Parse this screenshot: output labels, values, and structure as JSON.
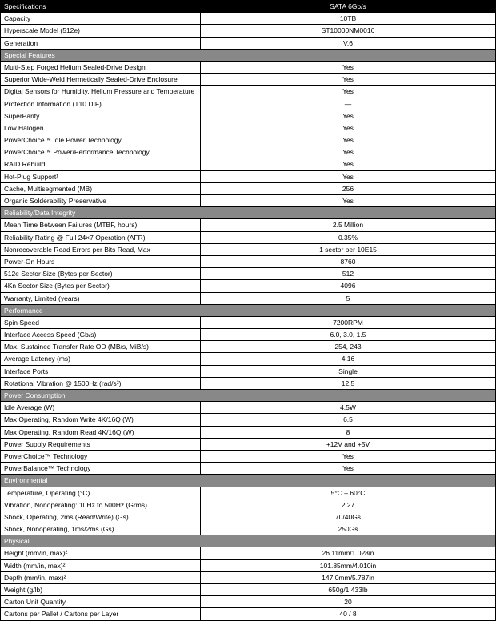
{
  "header": {
    "spec_label": "Specifications",
    "product": "SATA 6Gb/s"
  },
  "top_rows": [
    {
      "label": "Capacity",
      "value": "10TB"
    },
    {
      "label": "Hyperscale Model (512e)",
      "value": "ST10000NM0016"
    },
    {
      "label": "Generation",
      "value": "V.6"
    }
  ],
  "sections": [
    {
      "title": "Special Features",
      "rows": [
        {
          "label": "Multi-Step Forged Helium Sealed-Drive Design",
          "value": "Yes"
        },
        {
          "label": "Superior Wide-Weld Hermetically Sealed-Drive Enclosure",
          "value": "Yes"
        },
        {
          "label": "Digital Sensors for Humidity, Helium Pressure and Temperature",
          "value": "Yes"
        },
        {
          "label": "Protection Information (T10 DIF)",
          "value": "—"
        },
        {
          "label": "SuperParity",
          "value": "Yes"
        },
        {
          "label": "Low Halogen",
          "value": "Yes"
        },
        {
          "label": "PowerChoice™ Idle Power Technology",
          "value": "Yes"
        },
        {
          "label": "PowerChoice™ Power/Performance Technology",
          "value": "Yes"
        },
        {
          "label": "RAID Rebuild",
          "value": "Yes"
        },
        {
          "label": "Hot-Plug Support¹",
          "value": "Yes"
        },
        {
          "label": "Cache, Multisegmented (MB)",
          "value": "256"
        },
        {
          "label": "Organic Solderability Preservative",
          "value": "Yes"
        }
      ]
    },
    {
      "title": "Reliability/Data Integrity",
      "rows": [
        {
          "label": "Mean Time Between Failures (MTBF, hours)",
          "value": "2.5 Million"
        },
        {
          "label": "Reliability Rating @ Full 24×7 Operation (AFR)",
          "value": "0.35%"
        },
        {
          "label": "Nonrecoverable Read Errors per Bits Read, Max",
          "value": "1 sector per 10E15"
        },
        {
          "label": "Power-On Hours",
          "value": "8760"
        },
        {
          "label": "512e Sector Size (Bytes per Sector)",
          "value": "512"
        },
        {
          "label": "4Kn Sector Size (Bytes per Sector)",
          "value": "4096"
        },
        {
          "label": "Warranty, Limited (years)",
          "value": "5"
        }
      ]
    },
    {
      "title": "Performance",
      "rows": [
        {
          "label": "Spin Speed",
          "value": "7200RPM"
        },
        {
          "label": "Interface Access Speed (Gb/s)",
          "value": "6.0, 3.0, 1.5"
        },
        {
          "label": "Max. Sustained Transfer Rate OD (MB/s, MiB/s)",
          "value": "254, 243"
        },
        {
          "label": "Average Latency (ms)",
          "value": "4.16"
        },
        {
          "label": "Interface Ports",
          "value": "Single"
        },
        {
          "label": "Rotational Vibration @ 1500Hz (rad/s²)",
          "value": "12.5"
        }
      ]
    },
    {
      "title": "Power Consumption",
      "rows": [
        {
          "label": "Idle Average (W)",
          "value": "4.5W"
        },
        {
          "label": "Max Operating, Random Write 4K/16Q (W)",
          "value": "6.5"
        },
        {
          "label": "Max Operating, Random Read 4K/16Q (W)",
          "value": "8"
        },
        {
          "label": "Power Supply Requirements",
          "value": "+12V and +5V"
        },
        {
          "label": "PowerChoice™ Technology",
          "value": "Yes"
        },
        {
          "label": "PowerBalance™ Technology",
          "value": "Yes"
        }
      ]
    },
    {
      "title": "Environmental",
      "rows": [
        {
          "label": "Temperature, Operating (°C)",
          "value": "5°C – 60°C"
        },
        {
          "label": "Vibration, Nonoperating: 10Hz to 500Hz (Grms)",
          "value": "2.27"
        },
        {
          "label": "Shock, Operating, 2ms (Read/Write) (Gs)",
          "value": "70/40Gs"
        },
        {
          "label": "Shock, Nonoperating, 1ms/2ms (Gs)",
          "value": "250Gs"
        }
      ]
    },
    {
      "title": "Physical",
      "rows": [
        {
          "label": "Height (mm/in, max)²",
          "value": "26.11mm/1.028in"
        },
        {
          "label": "Width (mm/in, max)²",
          "value": "101.85mm/4.010in"
        },
        {
          "label": "Depth (mm/in, max)²",
          "value": "147.0mm/5.787in"
        },
        {
          "label": "Weight (g/lb)",
          "value": "650g/1.433lb"
        },
        {
          "label": "Carton Unit Quantity",
          "value": "20"
        },
        {
          "label": "Cartons per Pallet / Cartons per Layer",
          "value": "40 / 8"
        }
      ]
    }
  ]
}
